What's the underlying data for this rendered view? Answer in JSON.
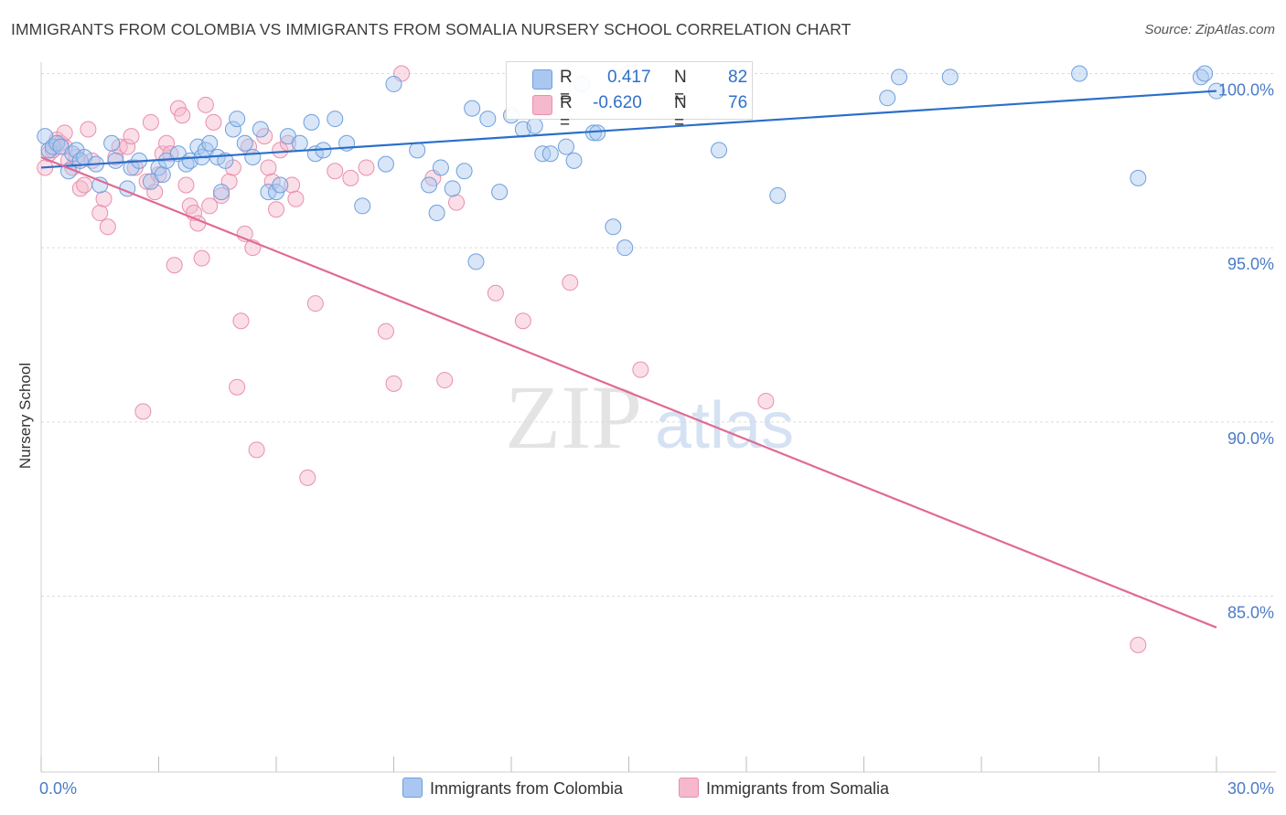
{
  "title": "IMMIGRANTS FROM COLOMBIA VS IMMIGRANTS FROM SOMALIA NURSERY SCHOOL CORRELATION CHART",
  "source": "Source: ZipAtlas.com",
  "watermark": {
    "zip": "ZIP",
    "atlas": "atlas"
  },
  "legend": {
    "colombia": {
      "r_label": "R =",
      "r_value": "0.417",
      "n_label": "N =",
      "n_value": "82"
    },
    "somalia": {
      "r_label": "R =",
      "r_value": "-0.620",
      "n_label": "N =",
      "n_value": "76"
    }
  },
  "bottom_legend": {
    "colombia": "Immigrants from Colombia",
    "somalia": "Immigrants from Somalia"
  },
  "colors": {
    "blue_fill": "#a9c7f0",
    "blue_stroke": "#6f9fdc",
    "blue_line": "#2a6fc9",
    "pink_fill": "#f5b8cc",
    "pink_stroke": "#ea8fab",
    "pink_line": "#e06a93",
    "accent_text": "#4a7bc8"
  },
  "chart_data": {
    "type": "scatter",
    "title": "IMMIGRANTS FROM COLOMBIA VS IMMIGRANTS FROM SOMALIA NURSERY SCHOOL CORRELATION CHART",
    "xlabel": "",
    "ylabel": "Nursery School",
    "xlim": [
      0,
      30
    ],
    "ylim": [
      80.5,
      100.5
    ],
    "x_tick_labels": {
      "left": "0.0%",
      "right": "30.0%"
    },
    "y_ticks": [
      {
        "value": 100,
        "label": "100.0%"
      },
      {
        "value": 95,
        "label": "95.0%"
      },
      {
        "value": 90,
        "label": "90.0%"
      },
      {
        "value": 85,
        "label": "85.0%"
      }
    ],
    "series": [
      {
        "name": "Immigrants from Colombia",
        "r": 0.417,
        "n": 82,
        "trend": {
          "x": [
            0,
            30
          ],
          "y": [
            97.3,
            99.5
          ]
        },
        "points": [
          [
            0.1,
            98.2
          ],
          [
            0.2,
            97.8
          ],
          [
            0.3,
            97.9
          ],
          [
            0.4,
            98.0
          ],
          [
            0.5,
            97.9
          ],
          [
            0.7,
            97.2
          ],
          [
            0.8,
            97.7
          ],
          [
            0.9,
            97.8
          ],
          [
            1.0,
            97.5
          ],
          [
            1.1,
            97.6
          ],
          [
            1.4,
            97.4
          ],
          [
            1.5,
            96.8
          ],
          [
            1.8,
            98.0
          ],
          [
            1.9,
            97.5
          ],
          [
            2.2,
            96.7
          ],
          [
            2.3,
            97.3
          ],
          [
            2.5,
            97.5
          ],
          [
            2.8,
            96.9
          ],
          [
            3.0,
            97.3
          ],
          [
            3.1,
            97.1
          ],
          [
            3.2,
            97.5
          ],
          [
            3.5,
            97.7
          ],
          [
            3.7,
            97.4
          ],
          [
            3.8,
            97.5
          ],
          [
            4.0,
            97.9
          ],
          [
            4.1,
            97.6
          ],
          [
            4.2,
            97.8
          ],
          [
            4.3,
            98.0
          ],
          [
            4.5,
            97.6
          ],
          [
            4.6,
            96.6
          ],
          [
            4.7,
            97.5
          ],
          [
            4.9,
            98.4
          ],
          [
            5.0,
            98.7
          ],
          [
            5.2,
            98.0
          ],
          [
            5.4,
            97.6
          ],
          [
            5.6,
            98.4
          ],
          [
            5.8,
            96.6
          ],
          [
            6.0,
            96.6
          ],
          [
            6.1,
            96.8
          ],
          [
            6.3,
            98.2
          ],
          [
            6.6,
            98.0
          ],
          [
            6.9,
            98.6
          ],
          [
            7.0,
            97.7
          ],
          [
            7.2,
            97.8
          ],
          [
            7.5,
            98.7
          ],
          [
            7.8,
            98.0
          ],
          [
            8.2,
            96.2
          ],
          [
            8.8,
            97.4
          ],
          [
            9.0,
            99.7
          ],
          [
            9.6,
            97.8
          ],
          [
            9.9,
            96.8
          ],
          [
            10.1,
            96.0
          ],
          [
            10.2,
            97.3
          ],
          [
            10.5,
            96.7
          ],
          [
            10.8,
            97.2
          ],
          [
            11.0,
            99.0
          ],
          [
            11.1,
            94.6
          ],
          [
            11.4,
            98.7
          ],
          [
            11.7,
            96.6
          ],
          [
            12.0,
            98.8
          ],
          [
            12.3,
            98.4
          ],
          [
            12.6,
            98.5
          ],
          [
            12.8,
            97.7
          ],
          [
            13.0,
            97.7
          ],
          [
            13.4,
            97.9
          ],
          [
            13.6,
            97.5
          ],
          [
            13.8,
            99.7
          ],
          [
            14.1,
            98.3
          ],
          [
            14.2,
            98.3
          ],
          [
            14.6,
            95.6
          ],
          [
            14.9,
            95.0
          ],
          [
            17.3,
            97.8
          ],
          [
            17.8,
            100.0
          ],
          [
            18.8,
            96.5
          ],
          [
            21.6,
            99.3
          ],
          [
            21.9,
            99.9
          ],
          [
            23.2,
            99.9
          ],
          [
            26.5,
            100.0
          ],
          [
            28.0,
            97.0
          ],
          [
            29.6,
            99.9
          ],
          [
            29.7,
            100.0
          ],
          [
            30.0,
            99.5
          ]
        ]
      },
      {
        "name": "Immigrants from Somalia",
        "r": -0.62,
        "n": 76,
        "trend": {
          "x": [
            0,
            30
          ],
          "y": [
            97.6,
            84.1
          ]
        },
        "points": [
          [
            0.1,
            97.3
          ],
          [
            0.2,
            97.7
          ],
          [
            0.3,
            97.8
          ],
          [
            0.4,
            98.1
          ],
          [
            0.5,
            98.0
          ],
          [
            0.6,
            97.9
          ],
          [
            0.6,
            98.3
          ],
          [
            0.7,
            97.5
          ],
          [
            0.8,
            97.3
          ],
          [
            0.9,
            97.6
          ],
          [
            1.0,
            96.7
          ],
          [
            1.1,
            96.8
          ],
          [
            1.2,
            98.4
          ],
          [
            1.3,
            97.5
          ],
          [
            1.5,
            96.0
          ],
          [
            1.6,
            96.4
          ],
          [
            1.7,
            95.6
          ],
          [
            1.9,
            97.6
          ],
          [
            2.0,
            97.9
          ],
          [
            2.2,
            97.9
          ],
          [
            2.3,
            98.2
          ],
          [
            2.4,
            97.3
          ],
          [
            2.6,
            90.3
          ],
          [
            2.7,
            96.9
          ],
          [
            2.8,
            98.6
          ],
          [
            2.9,
            96.6
          ],
          [
            3.0,
            97.1
          ],
          [
            3.1,
            97.7
          ],
          [
            3.2,
            98.0
          ],
          [
            3.3,
            97.7
          ],
          [
            3.4,
            94.5
          ],
          [
            3.5,
            99.0
          ],
          [
            3.6,
            98.8
          ],
          [
            3.7,
            96.8
          ],
          [
            3.8,
            96.2
          ],
          [
            3.9,
            96.0
          ],
          [
            4.0,
            95.7
          ],
          [
            4.1,
            94.7
          ],
          [
            4.2,
            99.1
          ],
          [
            4.3,
            96.2
          ],
          [
            4.4,
            98.6
          ],
          [
            4.6,
            96.5
          ],
          [
            4.8,
            96.9
          ],
          [
            4.9,
            97.3
          ],
          [
            5.0,
            91.0
          ],
          [
            5.1,
            92.9
          ],
          [
            5.2,
            95.4
          ],
          [
            5.3,
            97.9
          ],
          [
            5.4,
            95.0
          ],
          [
            5.5,
            89.2
          ],
          [
            5.7,
            98.2
          ],
          [
            5.8,
            97.3
          ],
          [
            5.9,
            96.9
          ],
          [
            6.0,
            96.1
          ],
          [
            6.1,
            97.8
          ],
          [
            6.3,
            98.0
          ],
          [
            6.4,
            96.8
          ],
          [
            6.5,
            96.4
          ],
          [
            6.8,
            88.4
          ],
          [
            7.0,
            93.4
          ],
          [
            7.5,
            97.2
          ],
          [
            7.9,
            97.0
          ],
          [
            8.3,
            97.3
          ],
          [
            8.8,
            92.6
          ],
          [
            9.0,
            91.1
          ],
          [
            9.2,
            100.0
          ],
          [
            10.0,
            97.0
          ],
          [
            10.3,
            91.2
          ],
          [
            10.6,
            96.3
          ],
          [
            11.6,
            93.7
          ],
          [
            12.3,
            92.9
          ],
          [
            13.5,
            94.0
          ],
          [
            15.0,
            100.0
          ],
          [
            15.3,
            91.5
          ],
          [
            18.5,
            90.6
          ],
          [
            28.0,
            83.6
          ]
        ]
      }
    ]
  }
}
